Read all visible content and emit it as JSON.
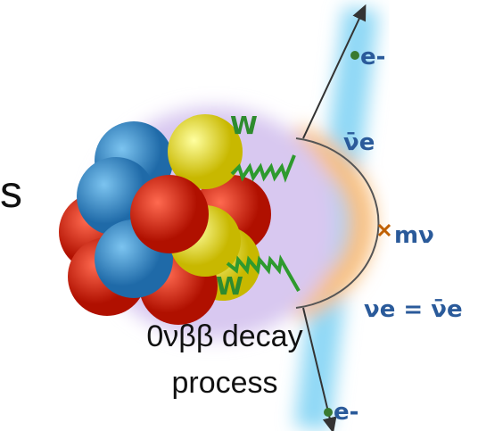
{
  "side_text": "s",
  "labels": {
    "w_top": "W",
    "w_bottom": "W",
    "antineutrino": "ν̄e",
    "mass": "mν",
    "majorana": "νe = ν̄e",
    "electron_top": "e-",
    "electron_bottom": "e-"
  },
  "caption": {
    "line1": "0νββ decay",
    "line2": "process"
  }
}
